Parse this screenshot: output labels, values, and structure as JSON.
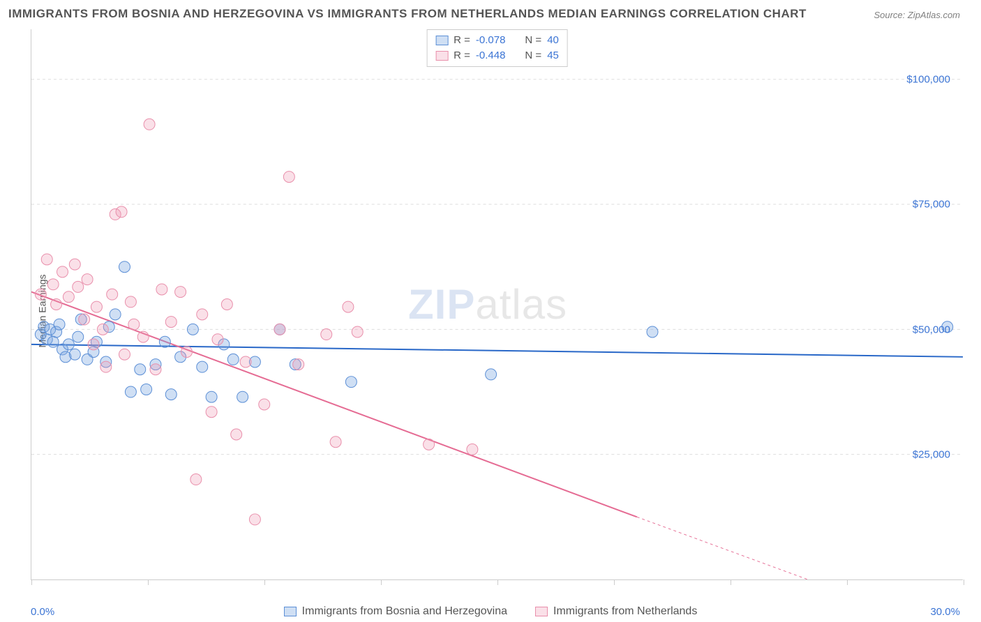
{
  "title": "IMMIGRANTS FROM BOSNIA AND HERZEGOVINA VS IMMIGRANTS FROM NETHERLANDS MEDIAN EARNINGS CORRELATION CHART",
  "source": "Source: ZipAtlas.com",
  "watermark_zip": "ZIP",
  "watermark_atlas": "atlas",
  "y_axis_label": "Median Earnings",
  "chart": {
    "type": "scatter",
    "xlim": [
      0,
      30
    ],
    "ylim": [
      0,
      110000
    ],
    "x_tick_positions": [
      0,
      3.75,
      7.5,
      11.25,
      15,
      18.75,
      22.5,
      26.25,
      30
    ],
    "x_tick_labels": {
      "0": "0.0%",
      "30": "30.0%"
    },
    "y_grid_values": [
      25000,
      50000,
      75000,
      100000
    ],
    "y_tick_labels": [
      "$25,000",
      "$50,000",
      "$75,000",
      "$100,000"
    ],
    "background_color": "#ffffff",
    "grid_color": "#dddddd",
    "axis_color": "#cccccc",
    "tick_label_color": "#3b74d4",
    "marker_radius": 8,
    "marker_stroke_width": 1,
    "line_width": 2,
    "series": [
      {
        "id": "bosnia",
        "legend_label": "Immigrants from Bosnia and Herzegovina",
        "fill_color": "rgba(118,163,223,0.35)",
        "stroke_color": "#5c8fd6",
        "line_color": "#2968c8",
        "r_value": "-0.078",
        "n_value": "40",
        "trend": {
          "x1": 0,
          "y1": 47000,
          "x2": 30,
          "y2": 44500
        },
        "points": [
          [
            0.3,
            49000
          ],
          [
            0.4,
            50500
          ],
          [
            0.5,
            48000
          ],
          [
            0.6,
            50000
          ],
          [
            0.7,
            47500
          ],
          [
            0.8,
            49500
          ],
          [
            0.9,
            51000
          ],
          [
            1.0,
            46000
          ],
          [
            1.1,
            44500
          ],
          [
            1.2,
            47000
          ],
          [
            1.4,
            45000
          ],
          [
            1.5,
            48500
          ],
          [
            1.6,
            52000
          ],
          [
            1.8,
            44000
          ],
          [
            2.0,
            45500
          ],
          [
            2.1,
            47500
          ],
          [
            2.4,
            43500
          ],
          [
            2.5,
            50500
          ],
          [
            2.7,
            53000
          ],
          [
            3.0,
            62500
          ],
          [
            3.2,
            37500
          ],
          [
            3.5,
            42000
          ],
          [
            3.7,
            38000
          ],
          [
            4.0,
            43000
          ],
          [
            4.3,
            47500
          ],
          [
            4.5,
            37000
          ],
          [
            4.8,
            44500
          ],
          [
            5.2,
            50000
          ],
          [
            5.5,
            42500
          ],
          [
            5.8,
            36500
          ],
          [
            6.2,
            47000
          ],
          [
            6.5,
            44000
          ],
          [
            6.8,
            36500
          ],
          [
            7.2,
            43500
          ],
          [
            8.0,
            50000
          ],
          [
            8.5,
            43000
          ],
          [
            10.3,
            39500
          ],
          [
            14.8,
            41000
          ],
          [
            20.0,
            49500
          ],
          [
            29.5,
            50500
          ]
        ]
      },
      {
        "id": "netherlands",
        "legend_label": "Immigrants from Netherlands",
        "fill_color": "rgba(239,153,180,0.30)",
        "stroke_color": "#e98fab",
        "line_color": "#e56b93",
        "r_value": "-0.448",
        "n_value": "45",
        "trend": {
          "x1": 0,
          "y1": 57500,
          "x2": 19.5,
          "y2": 12500
        },
        "trend_dashed": {
          "x1": 19.5,
          "y1": 12500,
          "x2": 25.0,
          "y2": 0
        },
        "points": [
          [
            0.3,
            57000
          ],
          [
            0.5,
            64000
          ],
          [
            0.7,
            59000
          ],
          [
            0.8,
            55000
          ],
          [
            1.0,
            61500
          ],
          [
            1.2,
            56500
          ],
          [
            1.4,
            63000
          ],
          [
            1.5,
            58500
          ],
          [
            1.7,
            52000
          ],
          [
            1.8,
            60000
          ],
          [
            2.0,
            47000
          ],
          [
            2.1,
            54500
          ],
          [
            2.3,
            50000
          ],
          [
            2.4,
            42500
          ],
          [
            2.6,
            57000
          ],
          [
            2.7,
            73000
          ],
          [
            2.9,
            73500
          ],
          [
            3.0,
            45000
          ],
          [
            3.2,
            55500
          ],
          [
            3.3,
            51000
          ],
          [
            3.6,
            48500
          ],
          [
            3.8,
            91000
          ],
          [
            4.0,
            42000
          ],
          [
            4.2,
            58000
          ],
          [
            4.5,
            51500
          ],
          [
            4.8,
            57500
          ],
          [
            5.0,
            45500
          ],
          [
            5.3,
            20000
          ],
          [
            5.5,
            53000
          ],
          [
            5.8,
            33500
          ],
          [
            6.0,
            48000
          ],
          [
            6.3,
            55000
          ],
          [
            6.6,
            29000
          ],
          [
            6.9,
            43500
          ],
          [
            7.2,
            12000
          ],
          [
            7.5,
            35000
          ],
          [
            8.0,
            50000
          ],
          [
            8.3,
            80500
          ],
          [
            8.6,
            43000
          ],
          [
            9.5,
            49000
          ],
          [
            9.8,
            27500
          ],
          [
            10.2,
            54500
          ],
          [
            12.8,
            27000
          ],
          [
            14.2,
            26000
          ],
          [
            10.5,
            49500
          ]
        ]
      }
    ]
  },
  "legend_top": {
    "r_prefix": "R =",
    "n_prefix": "N =",
    "value_color": "#3b74d4"
  }
}
